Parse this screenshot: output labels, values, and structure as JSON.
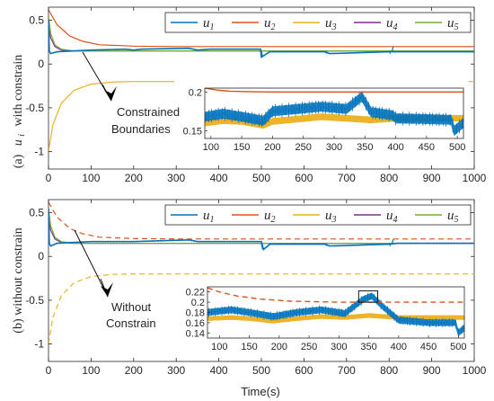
{
  "figure": {
    "xlabel": "Time(s)",
    "colors": {
      "u1": "#0072bd",
      "u2": "#d95319",
      "u3": "#edb120",
      "u4": "#7e2f8e",
      "u5": "#77ac30"
    }
  },
  "chart_data": [
    {
      "type": "line",
      "ylabel": "(a)  u_i  with constrain",
      "ylabel_main": "(a)",
      "ylabel_var": "u",
      "ylabel_sub": "i",
      "ylabel_rest": "with constrain",
      "xlabel": "",
      "xlim": [
        0,
        1000
      ],
      "ylim": [
        -1.2,
        0.65
      ],
      "x_ticks": [
        "0",
        "100",
        "200",
        "300",
        "400",
        "500",
        "600",
        "700",
        "800",
        "900",
        "1000"
      ],
      "y_ticks": [
        "0.5",
        "0",
        "-0.5",
        "-1"
      ],
      "legend": {
        "placement": "top-right",
        "entries": [
          "u1",
          "u2",
          "u3",
          "u4",
          "u5"
        ]
      },
      "series": [
        {
          "name": "u1",
          "x": [
            0,
            2,
            5,
            20,
            100,
            180,
            200,
            220,
            330,
            350,
            380,
            498,
            500,
            520,
            650,
            660,
            800,
            820,
            1000
          ],
          "y": [
            0.5,
            0.15,
            0.12,
            0.14,
            0.16,
            0.17,
            0.16,
            0.17,
            0.18,
            0.16,
            0.17,
            0.17,
            0.08,
            0.14,
            0.14,
            0.12,
            0.14,
            0.14,
            0.14
          ]
        },
        {
          "name": "u2",
          "x": [
            0,
            20,
            50,
            80,
            120,
            200,
            300,
            1000
          ],
          "y": [
            0.62,
            0.45,
            0.32,
            0.26,
            0.22,
            0.205,
            0.2,
            0.2
          ]
        },
        {
          "name": "u3",
          "x": [
            0,
            10,
            30,
            60,
            100,
            150,
            200,
            1000
          ],
          "y": [
            -1.0,
            -0.7,
            -0.45,
            -0.3,
            -0.23,
            -0.205,
            -0.2,
            -0.2
          ]
        },
        {
          "name": "u4",
          "x": [
            0,
            5,
            15,
            30,
            60,
            1000
          ],
          "y": [
            0.45,
            0.3,
            0.2,
            0.16,
            0.15,
            0.15
          ]
        },
        {
          "name": "u5",
          "x": [
            0,
            5,
            15,
            30,
            60,
            1000
          ],
          "y": [
            0.55,
            0.35,
            0.22,
            0.17,
            0.15,
            0.15
          ]
        }
      ],
      "annotation": {
        "lines": [
          "Constrained",
          "Boundaries"
        ]
      },
      "inset": {
        "xlim": [
          90,
          510
        ],
        "ylim": [
          0.14,
          0.205
        ],
        "x_ticks": [
          "100",
          "150",
          "200",
          "250",
          "300",
          "350",
          "400",
          "450",
          "500"
        ],
        "y_ticks": [
          "0.2",
          "0.15"
        ],
        "series": [
          {
            "name": "u2",
            "x": [
              90,
              110,
              130,
              160,
              200,
              300,
              510
            ],
            "y": [
              0.205,
              0.2025,
              0.201,
              0.2005,
              0.2,
              0.2,
              0.2
            ]
          },
          {
            "name": "u1",
            "x": [
              90,
              120,
              150,
              185,
              200,
              240,
              280,
              320,
              345,
              360,
              395,
              400,
              450,
              490,
              495,
              510
            ],
            "y": [
              0.168,
              0.172,
              0.168,
              0.163,
              0.175,
              0.178,
              0.181,
              0.178,
              0.194,
              0.174,
              0.17,
              0.166,
              0.165,
              0.164,
              0.15,
              0.16
            ]
          },
          {
            "name": "u3",
            "x": [
              90,
              120,
              150,
              185,
              200,
              240,
              280,
              320,
              360,
              400,
              510
            ],
            "y": [
              0.16,
              0.163,
              0.162,
              0.157,
              0.162,
              0.165,
              0.168,
              0.166,
              0.164,
              0.166,
              0.166
            ]
          }
        ]
      }
    },
    {
      "type": "line",
      "ylabel": "(b)  without constrain",
      "xlabel": "Time(s)",
      "xlim": [
        0,
        1000
      ],
      "ylim": [
        -1.2,
        0.65
      ],
      "x_ticks": [
        "0",
        "100",
        "200",
        "300",
        "400",
        "500",
        "600",
        "700",
        "800",
        "900",
        "1000"
      ],
      "y_ticks": [
        "0.5",
        "0",
        "-0.5",
        "-1"
      ],
      "legend": {
        "placement": "top-right",
        "entries": [
          "u1",
          "u2",
          "u3",
          "u4",
          "u5"
        ]
      },
      "series": [
        {
          "name": "u1",
          "x": [
            0,
            2,
            5,
            20,
            100,
            200,
            330,
            350,
            500,
            505,
            520,
            650,
            660,
            800,
            820,
            1000
          ],
          "y": [
            0.55,
            0.15,
            0.12,
            0.15,
            0.17,
            0.17,
            0.19,
            0.17,
            0.17,
            0.08,
            0.14,
            0.14,
            0.12,
            0.14,
            0.15,
            0.15
          ]
        },
        {
          "name": "u2",
          "x": [
            0,
            20,
            50,
            80,
            120,
            200,
            300,
            1000
          ],
          "y": [
            0.62,
            0.45,
            0.32,
            0.26,
            0.22,
            0.205,
            0.2,
            0.2
          ]
        },
        {
          "name": "u3",
          "x": [
            0,
            10,
            30,
            60,
            100,
            150,
            200,
            1000
          ],
          "y": [
            -1.0,
            -0.7,
            -0.45,
            -0.3,
            -0.23,
            -0.205,
            -0.2,
            -0.2
          ]
        },
        {
          "name": "u4",
          "x": [
            0,
            5,
            15,
            30,
            60,
            1000
          ],
          "y": [
            0.45,
            0.3,
            0.2,
            0.16,
            0.15,
            0.15
          ]
        },
        {
          "name": "u5",
          "x": [
            0,
            5,
            15,
            30,
            60,
            1000
          ],
          "y": [
            0.55,
            0.35,
            0.22,
            0.17,
            0.15,
            0.15
          ]
        }
      ],
      "annotation": {
        "lines": [
          "Without",
          "Constrain"
        ]
      },
      "inset": {
        "xlim": [
          80,
          510
        ],
        "ylim": [
          0.13,
          0.23
        ],
        "x_ticks": [
          "100",
          "150",
          "200",
          "250",
          "300",
          "350",
          "400",
          "450",
          "500"
        ],
        "y_ticks": [
          "0.22",
          "0.2",
          "0.18",
          "0.16",
          "0.14"
        ],
        "series": [
          {
            "name": "u2",
            "x": [
              80,
              100,
              130,
              170,
              220,
              300,
              510
            ],
            "y": [
              0.228,
              0.22,
              0.212,
              0.206,
              0.202,
              0.2,
              0.2
            ]
          },
          {
            "name": "u1",
            "x": [
              80,
              120,
              150,
              190,
              230,
              270,
              310,
              340,
              355,
              375,
              400,
              450,
              495,
              500,
              510
            ],
            "y": [
              0.18,
              0.185,
              0.18,
              0.172,
              0.18,
              0.185,
              0.178,
              0.205,
              0.212,
              0.19,
              0.165,
              0.16,
              0.16,
              0.14,
              0.15
            ]
          },
          {
            "name": "u3",
            "x": [
              80,
              120,
              150,
              190,
              230,
              270,
              310,
              350,
              400,
              510
            ],
            "y": [
              0.168,
              0.17,
              0.168,
              0.163,
              0.168,
              0.172,
              0.17,
              0.174,
              0.17,
              0.17
            ]
          }
        ]
      }
    }
  ]
}
